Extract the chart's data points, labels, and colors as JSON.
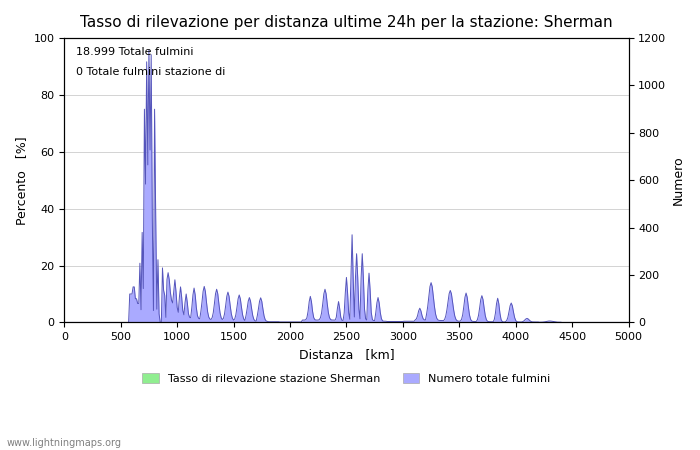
{
  "title": "Tasso di rilevazione per distanza ultime 24h per la stazione: Sherman",
  "xlabel": "Distanza   [km]",
  "ylabel_left": "Percento   [%]",
  "ylabel_right": "Numero",
  "xlim": [
    0,
    5000
  ],
  "ylim_left": [
    0,
    100
  ],
  "ylim_right": [
    0,
    1200
  ],
  "xticks": [
    0,
    500,
    1000,
    1500,
    2000,
    2500,
    3000,
    3500,
    4000,
    4500,
    5000
  ],
  "yticks_left": [
    0,
    20,
    40,
    60,
    80,
    100
  ],
  "yticks_right": [
    0,
    200,
    400,
    600,
    800,
    1000,
    1200
  ],
  "annotation_line1": "18.999 Totale fulmini",
  "annotation_line2": "0 Totale fulmini stazione di",
  "legend_label_green": "Tasso di rilevazione stazione Sherman",
  "legend_label_blue": "Numero totale fulmini",
  "watermark": "www.lightningmaps.org",
  "fill_green_color": "#90EE90",
  "fill_blue_color": "#aaaaff",
  "line_color": "#5555bb",
  "background_color": "#ffffff",
  "grid_color": "#cccccc",
  "title_fontsize": 11,
  "axis_fontsize": 9,
  "tick_fontsize": 8,
  "annotation_fontsize": 8,
  "watermark_fontsize": 7
}
